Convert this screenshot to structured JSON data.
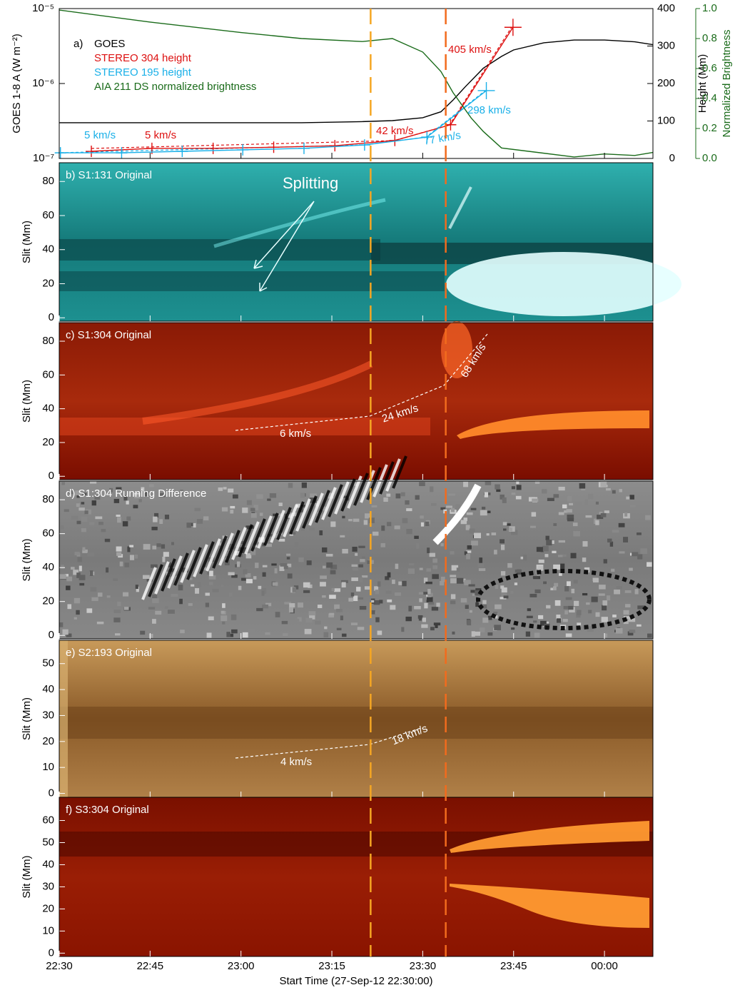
{
  "chart_data": [
    {
      "type": "line",
      "title": "a)",
      "xlabel": "Start Time (27-Sep-12 22:30:00)",
      "xlim": [
        0,
        98
      ],
      "xticks": [
        {
          "value": 0,
          "label": "22:30"
        },
        {
          "value": 15,
          "label": "22:45"
        },
        {
          "value": 30,
          "label": "23:00"
        },
        {
          "value": 45,
          "label": "23:15"
        },
        {
          "value": 60,
          "label": "23:30"
        },
        {
          "value": 75,
          "label": "23:45"
        },
        {
          "value": 90,
          "label": "00:00"
        }
      ],
      "ylabel": "GOES 1-8 A  (W m⁻²)",
      "ylog": true,
      "ylim": [
        1e-07,
        1e-05
      ],
      "yticks": [
        {
          "value": 1e-07,
          "label": "10⁻⁷"
        },
        {
          "value": 1e-06,
          "label": "10⁻⁶"
        },
        {
          "value": 1e-05,
          "label": "10⁻⁵"
        }
      ],
      "y2label": "Height (Mm)",
      "y2lim": [
        0,
        400
      ],
      "y2ticks": [
        0,
        100,
        200,
        300,
        400
      ],
      "y3label": "Normalized Brightness",
      "y3lim": [
        0,
        1
      ],
      "y3color": "#1a6b1a",
      "y3ticks": [
        {
          "value": 0,
          "label": "0.0"
        },
        {
          "value": 0.2,
          "label": "0.2"
        },
        {
          "value": 0.4,
          "label": "0.4"
        },
        {
          "value": 0.6,
          "label": "0.6"
        },
        {
          "value": 0.8,
          "label": "0.8"
        },
        {
          "value": 1,
          "label": "1.0"
        }
      ],
      "series": [
        {
          "name": "GOES",
          "color": "#000000",
          "axis": "y",
          "x": [
            0,
            10,
            20,
            30,
            40,
            50,
            55,
            60,
            63,
            65,
            67,
            70,
            73,
            75,
            80,
            85,
            90,
            95,
            98
          ],
          "values": [
            3e-07,
            3e-07,
            3e-07,
            3e-07,
            3e-07,
            3.1e-07,
            3.2e-07,
            3.5e-07,
            4.2e-07,
            6e-07,
            9e-07,
            1.6e-06,
            2.3e-06,
            2.8e-06,
            3.5e-06,
            3.8e-06,
            3.8e-06,
            3.6e-06,
            3.3e-06
          ]
        },
        {
          "name": "STEREO 304 height",
          "color": "#dd1010",
          "axis": "y2",
          "marker": "cross",
          "x": [
            5.3,
            15.3,
            25.4,
            35.4,
            45.5,
            55.4,
            64.6,
            74.9
          ],
          "values": [
            19,
            27,
            27,
            30,
            34,
            48,
            90,
            350
          ]
        },
        {
          "name": "STEREO 195 height",
          "color": "#1ab0e8",
          "axis": "y2",
          "marker": "cross",
          "x": [
            0.2,
            10.3,
            20.3,
            30.3,
            40.4,
            50.4,
            60.7,
            70.5
          ],
          "values": [
            15,
            15,
            19,
            23,
            27,
            36,
            57,
            181
          ]
        },
        {
          "name": "AIA 211 DS normalized brightness",
          "color": "#1a6b1a",
          "axis": "y3",
          "x": [
            0,
            15,
            30,
            40,
            50,
            55,
            60,
            63,
            65,
            68,
            70,
            73,
            77,
            85,
            90,
            95,
            98
          ],
          "values": [
            0.99,
            0.91,
            0.84,
            0.8,
            0.78,
            0.8,
            0.71,
            0.58,
            0.44,
            0.27,
            0.18,
            0.07,
            0.05,
            0.01,
            0.03,
            0.02,
            0.04
          ]
        }
      ],
      "annotations": [
        {
          "text": "405 km/s",
          "color": "#dd1010"
        },
        {
          "text": "298 km/s",
          "color": "#1ab0e8"
        },
        {
          "text": "5 km/s",
          "color": "#1ab0e8"
        },
        {
          "text": "5 km/s",
          "color": "#dd1010"
        },
        {
          "text": "42 km/s",
          "color": "#dd1010"
        },
        {
          "text": "77 km/s",
          "color": "#1ab0e8"
        }
      ],
      "event_lines": [
        {
          "x": 51.4,
          "color": "#f5a623"
        },
        {
          "x": 63.8,
          "color": "#f26b1d"
        }
      ]
    },
    {
      "type": "image",
      "title": "b) S1:131 Original",
      "ylabel": "Slit (Mm)",
      "ylim": [
        -2,
        91
      ],
      "yticks": [
        0,
        20,
        40,
        60,
        80
      ],
      "colors": [
        "#2fb0ae",
        "#157a7a",
        "#1d9090"
      ],
      "highlight": "#e4ffff",
      "annotations": [
        {
          "text": "Splitting"
        }
      ]
    },
    {
      "type": "image",
      "title": "c) S1:304 Original",
      "ylabel": "Slit (Mm)",
      "ylim": [
        -2,
        91
      ],
      "yticks": [
        0,
        20,
        40,
        60,
        80
      ],
      "colors": [
        "#8a1a05",
        "#a82a0c",
        "#7a0d00"
      ],
      "highlight": "#ff8a2a",
      "annotations": [
        {
          "text": "6 km/s"
        },
        {
          "text": "24 km/s"
        },
        {
          "text": "68 km/s"
        }
      ]
    },
    {
      "type": "image",
      "title": "d) S1:304 Running Difference",
      "ylabel": "Slit (Mm)",
      "ylim": [
        -2,
        91
      ],
      "yticks": [
        0,
        20,
        40,
        60,
        80
      ],
      "colors": [
        "#8c8c8c",
        "#7a7a7a",
        "#888888"
      ],
      "highlight": "#ffffff",
      "annotations": []
    },
    {
      "type": "image",
      "title": "e) S2:193 Original",
      "ylabel": "Slit (Mm)",
      "ylim": [
        -1.5,
        59
      ],
      "yticks": [
        0,
        10,
        20,
        30,
        40,
        50
      ],
      "colors": [
        "#c89a5a",
        "#8a5a28",
        "#b08048"
      ],
      "highlight": "#e8c48a",
      "annotations": [
        {
          "text": "4 km/s"
        },
        {
          "text": "18 km/s"
        }
      ]
    },
    {
      "type": "image",
      "title": "f) S3:304 Original",
      "ylabel": "Slit (Mm)",
      "ylim": [
        -1.5,
        70.5
      ],
      "yticks": [
        0,
        10,
        20,
        30,
        40,
        50,
        60
      ],
      "colors": [
        "#7a1000",
        "#9a1e05",
        "#8a1400"
      ],
      "highlight": "#ff9a30",
      "annotations": []
    }
  ]
}
